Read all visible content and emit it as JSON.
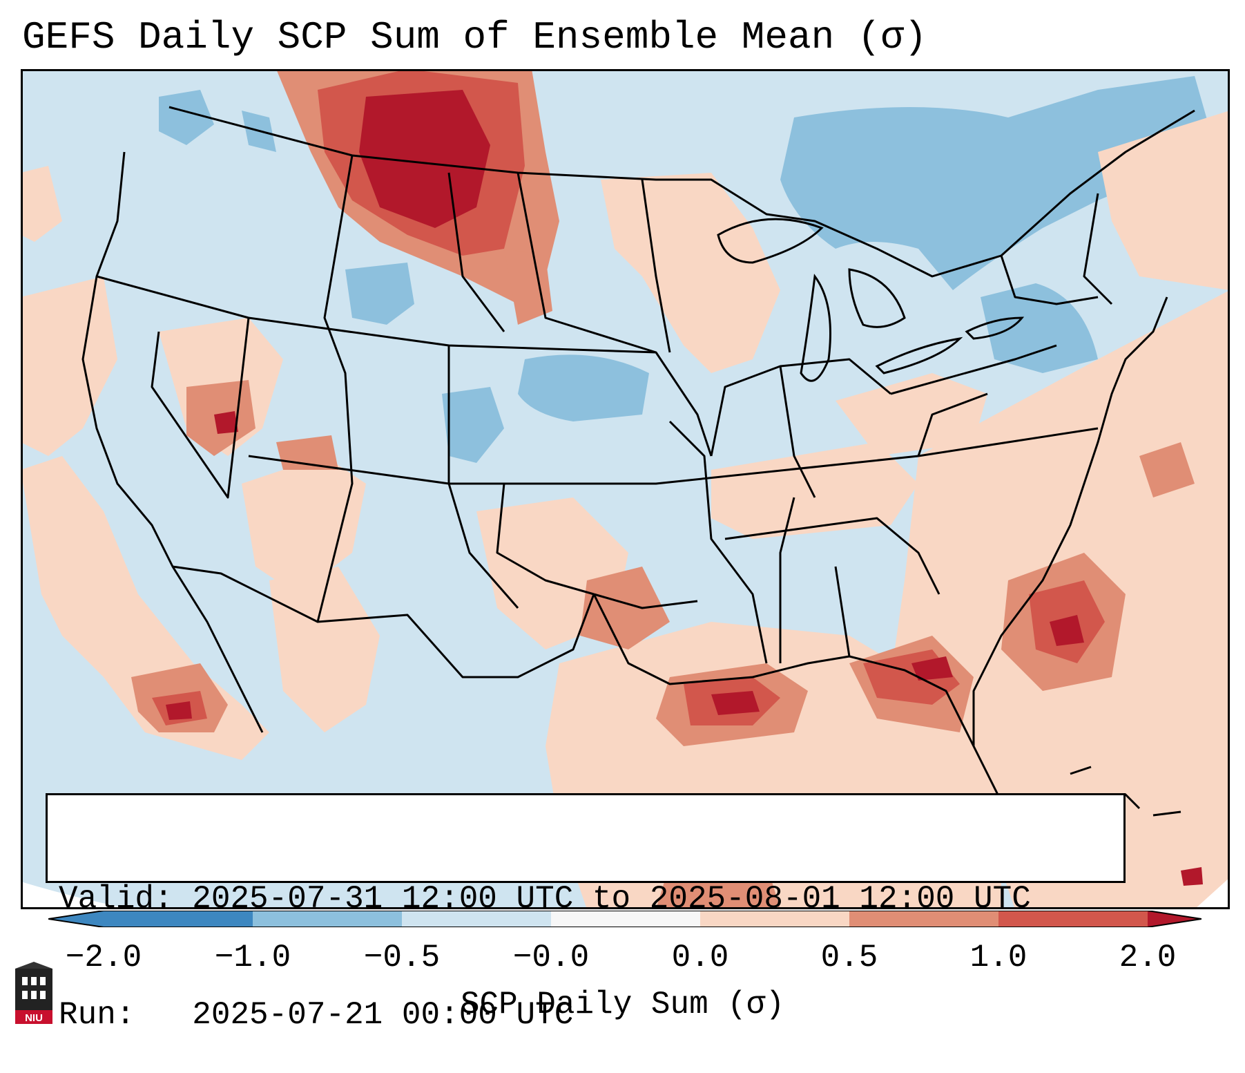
{
  "title": "GEFS Daily SCP Sum of Ensemble Mean (σ)",
  "colors": {
    "c_m2": "#3d87c0",
    "c_m1": "#8dc0dd",
    "c_m05": "#cfe4f0",
    "c_m0": "#f7f7f7",
    "c_p0": "#f9d7c4",
    "c_p05": "#e08e75",
    "c_p1": "#d2574c",
    "c_p2": "#b2182b",
    "borders": "#000000",
    "ocean_nodata": "#ffffff"
  },
  "info_box": {
    "valid_line": "Valid: 2025-07-31 12:00 UTC to 2025-08-01 12:00 UTC",
    "run_line": "Run:   2025-07-21 00:00 UTC"
  },
  "colorbar": {
    "ticks": [
      "−2.0",
      "−1.0",
      "−0.5",
      "−0.0",
      "0.0",
      "0.5",
      "1.0",
      "2.0"
    ],
    "label": "SCP Daily Sum (σ)"
  },
  "logo": {
    "text": "NIU"
  }
}
